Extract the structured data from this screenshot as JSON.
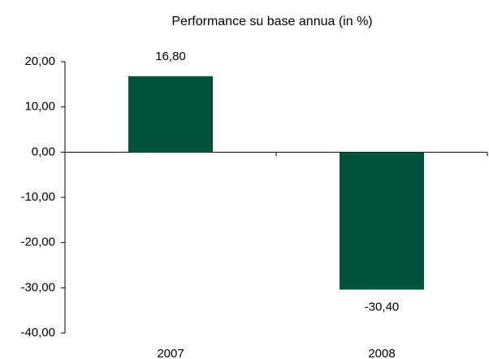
{
  "chart_data": {
    "type": "bar",
    "title": "Performance su base annua (in %)",
    "categories": [
      "2007",
      "2008"
    ],
    "values": [
      16.8,
      -30.4
    ],
    "value_labels": [
      "16,80",
      "-30,40"
    ],
    "color": "#00533b",
    "ylim": [
      -40,
      20
    ],
    "yticks": [
      {
        "value": -40,
        "label": "-40,00"
      },
      {
        "value": -30,
        "label": "-30,00"
      },
      {
        "value": -20,
        "label": "-20,00"
      },
      {
        "value": -10,
        "label": "-10,00"
      },
      {
        "value": 0,
        "label": "0,00"
      },
      {
        "value": 10,
        "label": "10,00"
      },
      {
        "value": 20,
        "label": "20,00"
      }
    ],
    "grid": false
  }
}
